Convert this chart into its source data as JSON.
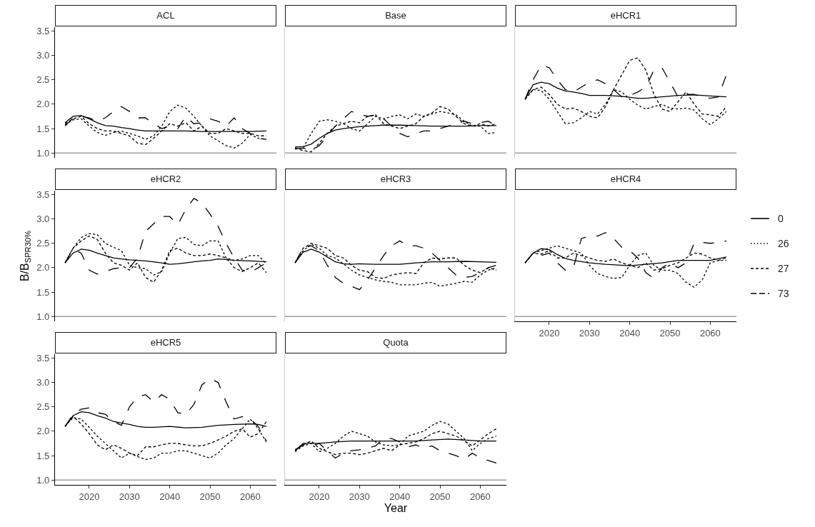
{
  "chart_data": [
    {
      "type": "line",
      "title": "ACL",
      "xlim": [
        2011.5,
        2066.5
      ],
      "xticks": [
        2020,
        2030,
        2040,
        2050,
        2060
      ],
      "ylim": [
        0.9,
        3.58
      ],
      "yticks": [
        {
          "value": 1,
          "label": "1.0"
        },
        {
          "value": 1.5,
          "label": "1.5"
        },
        {
          "value": 2,
          "label": "2.0"
        },
        {
          "value": 2.5,
          "label": "2.5"
        },
        {
          "value": 3,
          "label": "3.0"
        },
        {
          "value": 3.5,
          "label": "3.5"
        }
      ],
      "tick_labels": "y",
      "ref_lines": [
        {
          "axis": "y",
          "value": 1,
          "color": "#a0a0a0"
        }
      ],
      "series": [
        {
          "color": "#000000",
          "line_style": "solid",
          "x": [
            2014,
            2016,
            2018,
            2020,
            2022,
            2024,
            2026,
            2028,
            2030,
            2032,
            2034,
            2036,
            2040,
            2044,
            2048,
            2052,
            2056,
            2060,
            2064
          ],
          "values": [
            1.62,
            1.75,
            1.77,
            1.7,
            1.62,
            1.56,
            1.55,
            1.52,
            1.5,
            1.47,
            1.45,
            1.45,
            1.45,
            1.45,
            1.44,
            1.44,
            1.44,
            1.44,
            1.45
          ]
        },
        {
          "color": "#000000",
          "line_style": "dotted",
          "x": [
            2014,
            2016,
            2018,
            2020,
            2022,
            2024,
            2026,
            2028,
            2030,
            2032,
            2034,
            2036,
            2038,
            2040,
            2042,
            2044,
            2046,
            2048,
            2050,
            2052,
            2054,
            2056,
            2058,
            2060,
            2062,
            2064
          ],
          "values": [
            1.58,
            1.68,
            1.7,
            1.55,
            1.42,
            1.36,
            1.42,
            1.45,
            1.4,
            1.35,
            1.28,
            1.35,
            1.55,
            1.85,
            1.98,
            1.92,
            1.75,
            1.55,
            1.35,
            1.25,
            1.15,
            1.1,
            1.2,
            1.38,
            1.3,
            1.28
          ]
        },
        {
          "color": "#000000",
          "line_style": "dashed",
          "x": [
            2014,
            2016,
            2018,
            2020,
            2022,
            2024,
            2026,
            2028,
            2030,
            2032,
            2034,
            2036,
            2038,
            2040,
            2042,
            2044,
            2046,
            2048,
            2050,
            2052,
            2054,
            2056,
            2058,
            2060,
            2062,
            2064
          ],
          "values": [
            1.6,
            1.7,
            1.75,
            1.6,
            1.5,
            1.45,
            1.45,
            1.4,
            1.35,
            1.2,
            1.17,
            1.3,
            1.45,
            1.6,
            1.55,
            1.62,
            1.45,
            1.55,
            1.4,
            1.4,
            1.5,
            1.45,
            1.4,
            1.4,
            1.35,
            1.35
          ]
        },
        {
          "color": "#000000",
          "line_style": "longdash",
          "x": [
            2014,
            2016,
            2018,
            2020,
            2022,
            2024,
            2026,
            2028,
            2030,
            2032,
            2034,
            2036,
            2038,
            2040,
            2042,
            2044,
            2046,
            2048,
            2050,
            2052,
            2054,
            2056,
            2058,
            2060,
            2062,
            2064
          ],
          "values": [
            1.55,
            1.72,
            1.75,
            1.72,
            1.65,
            1.72,
            1.85,
            1.95,
            1.85,
            1.72,
            1.72,
            1.6,
            1.5,
            1.55,
            1.5,
            1.75,
            1.6,
            1.62,
            1.7,
            1.65,
            1.55,
            1.72,
            1.5,
            1.4,
            1.3,
            1.28
          ]
        }
      ]
    },
    {
      "type": "line",
      "title": "Base",
      "xlim": [
        2011.5,
        2066.5
      ],
      "xticks": [
        2020,
        2030,
        2040,
        2050,
        2060
      ],
      "ylim": [
        0.9,
        3.58
      ],
      "tick_labels": false,
      "ref_lines": [
        {
          "axis": "y",
          "value": 1,
          "color": "#a0a0a0"
        }
      ],
      "series": [
        {
          "color": "#000000",
          "line_style": "solid",
          "x": [
            2014,
            2016,
            2018,
            2020,
            2022,
            2024,
            2026,
            2028,
            2030,
            2032,
            2034,
            2036,
            2040,
            2044,
            2048,
            2052,
            2056,
            2060,
            2064
          ],
          "values": [
            1.12,
            1.13,
            1.18,
            1.3,
            1.4,
            1.47,
            1.5,
            1.52,
            1.54,
            1.55,
            1.56,
            1.57,
            1.57,
            1.56,
            1.55,
            1.55,
            1.55,
            1.56,
            1.56
          ]
        },
        {
          "color": "#000000",
          "line_style": "dotted",
          "x": [
            2014,
            2016,
            2018,
            2020,
            2022,
            2024,
            2026,
            2028,
            2030,
            2032,
            2034,
            2036,
            2038,
            2040,
            2042,
            2044,
            2046,
            2048,
            2050,
            2052,
            2054,
            2056,
            2058,
            2060,
            2062,
            2064
          ],
          "values": [
            1.08,
            1.1,
            1.4,
            1.65,
            1.68,
            1.65,
            1.6,
            1.5,
            1.45,
            1.6,
            1.75,
            1.7,
            1.75,
            1.78,
            1.7,
            1.8,
            1.75,
            1.8,
            1.85,
            1.82,
            1.78,
            1.65,
            1.55,
            1.55,
            1.4,
            1.42
          ]
        },
        {
          "color": "#000000",
          "line_style": "dashed",
          "x": [
            2014,
            2016,
            2018,
            2020,
            2022,
            2024,
            2026,
            2028,
            2030,
            2032,
            2034,
            2036,
            2038,
            2040,
            2042,
            2044,
            2046,
            2048,
            2050,
            2052,
            2054,
            2056,
            2058,
            2060,
            2062,
            2064
          ],
          "values": [
            1.1,
            1.05,
            1.02,
            1.2,
            1.4,
            1.55,
            1.6,
            1.65,
            1.62,
            1.75,
            1.78,
            1.6,
            1.55,
            1.5,
            1.55,
            1.6,
            1.75,
            1.82,
            1.95,
            1.9,
            1.75,
            1.6,
            1.55,
            1.6,
            1.55,
            1.6
          ]
        },
        {
          "color": "#000000",
          "line_style": "longdash",
          "x": [
            2014,
            2016,
            2018,
            2020,
            2022,
            2024,
            2026,
            2028,
            2030,
            2032,
            2034,
            2036,
            2038,
            2040,
            2042,
            2044,
            2046,
            2048,
            2050,
            2052,
            2054,
            2056,
            2058,
            2060,
            2062,
            2064
          ],
          "values": [
            1.08,
            1.1,
            1.05,
            1.15,
            1.35,
            1.55,
            1.7,
            1.85,
            1.8,
            1.75,
            1.78,
            1.7,
            1.55,
            1.4,
            1.33,
            1.4,
            1.45,
            1.45,
            1.5,
            1.55,
            1.6,
            1.65,
            1.6,
            1.62,
            1.65,
            1.55
          ]
        }
      ]
    },
    {
      "type": "line",
      "title": "eHCR1",
      "xlim": [
        2011.5,
        2066.5
      ],
      "xticks": [
        2020,
        2030,
        2040,
        2050,
        2060
      ],
      "ylim": [
        0.9,
        3.58
      ],
      "tick_labels": false,
      "ref_lines": [
        {
          "axis": "y",
          "value": 1,
          "color": "#a0a0a0"
        }
      ],
      "series": [
        {
          "color": "#000000",
          "line_style": "solid",
          "x": [
            2014,
            2016,
            2018,
            2020,
            2022,
            2024,
            2026,
            2028,
            2030,
            2034,
            2038,
            2042,
            2044,
            2048,
            2052,
            2056,
            2060,
            2064
          ],
          "values": [
            2.1,
            2.4,
            2.45,
            2.42,
            2.33,
            2.27,
            2.25,
            2.22,
            2.18,
            2.18,
            2.16,
            2.12,
            2.12,
            2.15,
            2.18,
            2.19,
            2.17,
            2.15
          ]
        },
        {
          "color": "#000000",
          "line_style": "dotted",
          "x": [
            2014,
            2016,
            2018,
            2020,
            2022,
            2024,
            2026,
            2028,
            2030,
            2032,
            2034,
            2036,
            2038,
            2040,
            2042,
            2044,
            2046,
            2048,
            2050,
            2052,
            2054,
            2056,
            2058,
            2060,
            2062,
            2064
          ],
          "values": [
            2.1,
            2.3,
            2.28,
            2.1,
            1.85,
            1.6,
            1.62,
            1.72,
            1.85,
            1.8,
            2.0,
            2.3,
            2.25,
            2.1,
            1.98,
            1.9,
            1.95,
            2.0,
            1.92,
            1.9,
            1.92,
            1.88,
            1.7,
            1.58,
            1.7,
            1.85
          ]
        },
        {
          "color": "#000000",
          "line_style": "dashed",
          "x": [
            2014,
            2016,
            2018,
            2020,
            2022,
            2024,
            2026,
            2028,
            2030,
            2032,
            2034,
            2036,
            2038,
            2040,
            2042,
            2044,
            2046,
            2048,
            2050,
            2052,
            2054,
            2056,
            2058,
            2060,
            2062,
            2064
          ],
          "values": [
            2.1,
            2.3,
            2.35,
            2.2,
            2.0,
            1.9,
            1.92,
            1.85,
            1.75,
            1.72,
            1.95,
            2.3,
            2.6,
            2.9,
            2.95,
            2.7,
            2.2,
            1.9,
            1.85,
            2.05,
            2.25,
            2.0,
            1.8,
            1.78,
            1.75,
            1.95
          ]
        },
        {
          "color": "#000000",
          "line_style": "longdash",
          "x": [
            2014,
            2016,
            2018,
            2020,
            2022,
            2024,
            2026,
            2028,
            2030,
            2032,
            2034,
            2036,
            2038,
            2040,
            2042,
            2044,
            2046,
            2048,
            2050,
            2052,
            2054,
            2056,
            2058,
            2060,
            2062,
            2064
          ],
          "values": [
            2.1,
            2.5,
            2.8,
            2.75,
            2.5,
            2.3,
            2.25,
            2.35,
            2.45,
            2.5,
            2.42,
            2.3,
            2.15,
            2.18,
            2.25,
            2.35,
            2.7,
            2.75,
            2.45,
            2.15,
            2.2,
            2.2,
            2.15,
            2.12,
            2.15,
            2.6
          ]
        }
      ]
    },
    {
      "type": "line",
      "title": "eHCR2",
      "ylabel": "B/B$_{SPR30%}$",
      "xlim": [
        2011.5,
        2066.5
      ],
      "xticks": [
        2020,
        2030,
        2040,
        2050,
        2060
      ],
      "ylim": [
        0.9,
        3.58
      ],
      "yticks": [
        {
          "value": 1,
          "label": "1.0"
        },
        {
          "value": 1.5,
          "label": "1.5"
        },
        {
          "value": 2,
          "label": "2.0"
        },
        {
          "value": 2.5,
          "label": "2.5"
        },
        {
          "value": 3,
          "label": "3.0"
        },
        {
          "value": 3.5,
          "label": "3.5"
        }
      ],
      "tick_labels": "y",
      "ref_lines": [
        {
          "axis": "y",
          "value": 1,
          "color": "#a0a0a0"
        }
      ],
      "series": [
        {
          "color": "#000000",
          "line_style": "solid",
          "x": [
            2014,
            2016,
            2018,
            2020,
            2022,
            2024,
            2026,
            2028,
            2030,
            2034,
            2038,
            2040,
            2042,
            2044,
            2046,
            2048,
            2050,
            2052,
            2054,
            2056,
            2060,
            2064
          ],
          "values": [
            2.1,
            2.3,
            2.38,
            2.36,
            2.3,
            2.25,
            2.2,
            2.18,
            2.16,
            2.14,
            2.1,
            2.07,
            2.08,
            2.1,
            2.12,
            2.14,
            2.15,
            2.18,
            2.17,
            2.15,
            2.14,
            2.12
          ]
        },
        {
          "color": "#000000",
          "line_style": "dotted",
          "x": [
            2014,
            2016,
            2018,
            2020,
            2022,
            2024,
            2026,
            2028,
            2030,
            2032,
            2034,
            2036,
            2038,
            2040,
            2042,
            2044,
            2046,
            2048,
            2050,
            2052,
            2054,
            2056,
            2058,
            2060,
            2062,
            2064
          ],
          "values": [
            2.1,
            2.4,
            2.62,
            2.7,
            2.68,
            2.5,
            2.42,
            2.35,
            2.05,
            2.0,
            1.98,
            1.85,
            1.92,
            2.3,
            2.6,
            2.62,
            2.48,
            2.45,
            2.55,
            2.55,
            2.2,
            2.15,
            2.18,
            2.25,
            2.25,
            2.08
          ]
        },
        {
          "color": "#000000",
          "line_style": "dashed",
          "x": [
            2014,
            2016,
            2018,
            2020,
            2022,
            2024,
            2026,
            2028,
            2030,
            2032,
            2034,
            2036,
            2038,
            2040,
            2042,
            2044,
            2046,
            2048,
            2050,
            2052,
            2054,
            2056,
            2058,
            2060,
            2062,
            2064
          ],
          "values": [
            2.1,
            2.4,
            2.55,
            2.65,
            2.58,
            2.3,
            2.1,
            2.05,
            1.95,
            2.1,
            1.8,
            1.7,
            1.95,
            2.35,
            2.4,
            2.3,
            2.25,
            2.25,
            2.28,
            2.25,
            2.2,
            2.0,
            1.92,
            2.0,
            2.1,
            1.9
          ]
        },
        {
          "color": "#000000",
          "line_style": "longdash",
          "x": [
            2014,
            2016,
            2018,
            2020,
            2022,
            2024,
            2026,
            2028,
            2030,
            2032,
            2034,
            2036,
            2038,
            2040,
            2042,
            2044,
            2046,
            2048,
            2050,
            2052,
            2054,
            2056,
            2058,
            2060,
            2062,
            2064
          ],
          "values": [
            2.1,
            2.38,
            2.3,
            1.95,
            1.87,
            1.92,
            1.98,
            2.0,
            2.0,
            2.2,
            2.75,
            2.9,
            3.05,
            3.05,
            2.88,
            3.2,
            3.42,
            3.33,
            3.1,
            2.85,
            2.5,
            2.2,
            1.95,
            1.9,
            2.0,
            2.1
          ]
        }
      ]
    },
    {
      "type": "line",
      "title": "eHCR3",
      "xlim": [
        2011.5,
        2066.5
      ],
      "xticks": [
        2020,
        2030,
        2040,
        2050,
        2060
      ],
      "ylim": [
        0.9,
        3.58
      ],
      "tick_labels": false,
      "ref_lines": [
        {
          "axis": "y",
          "value": 1,
          "color": "#a0a0a0"
        }
      ],
      "series": [
        {
          "color": "#000000",
          "line_style": "solid",
          "x": [
            2014,
            2016,
            2018,
            2020,
            2022,
            2024,
            2026,
            2028,
            2030,
            2034,
            2040,
            2044,
            2048,
            2052,
            2056,
            2060,
            2064
          ],
          "values": [
            2.1,
            2.32,
            2.38,
            2.32,
            2.22,
            2.12,
            2.08,
            2.07,
            2.08,
            2.07,
            2.07,
            2.1,
            2.12,
            2.12,
            2.13,
            2.12,
            2.11
          ]
        },
        {
          "color": "#000000",
          "line_style": "dotted",
          "x": [
            2014,
            2016,
            2018,
            2020,
            2022,
            2024,
            2026,
            2028,
            2030,
            2032,
            2034,
            2036,
            2038,
            2040,
            2042,
            2044,
            2046,
            2048,
            2050,
            2052,
            2054,
            2056,
            2058,
            2060,
            2062,
            2064
          ],
          "values": [
            2.1,
            2.35,
            2.48,
            2.4,
            2.25,
            2.2,
            2.08,
            1.95,
            1.85,
            1.8,
            1.75,
            1.72,
            1.7,
            1.65,
            1.65,
            1.65,
            1.68,
            1.7,
            1.62,
            1.65,
            1.68,
            1.72,
            1.7,
            1.85,
            1.95,
            2.0
          ]
        },
        {
          "color": "#000000",
          "line_style": "dashed",
          "x": [
            2014,
            2016,
            2018,
            2020,
            2022,
            2024,
            2026,
            2028,
            2030,
            2032,
            2034,
            2036,
            2038,
            2040,
            2042,
            2044,
            2046,
            2048,
            2050,
            2052,
            2054,
            2056,
            2058,
            2060,
            2062,
            2064
          ],
          "values": [
            2.1,
            2.4,
            2.5,
            2.45,
            2.4,
            2.25,
            2.2,
            2.05,
            1.95,
            1.92,
            1.8,
            1.78,
            1.85,
            1.88,
            1.9,
            1.88,
            2.1,
            2.2,
            2.18,
            2.2,
            2.2,
            2.05,
            1.95,
            1.9,
            2.0,
            1.95
          ]
        },
        {
          "color": "#000000",
          "line_style": "longdash",
          "x": [
            2014,
            2016,
            2018,
            2020,
            2022,
            2024,
            2026,
            2028,
            2030,
            2032,
            2034,
            2036,
            2038,
            2040,
            2042,
            2044,
            2046,
            2048,
            2050,
            2052,
            2054,
            2056,
            2058,
            2060,
            2062,
            2064
          ],
          "values": [
            2.1,
            2.4,
            2.45,
            2.35,
            2.05,
            1.8,
            1.68,
            1.62,
            1.55,
            1.75,
            2.0,
            2.25,
            2.45,
            2.55,
            2.45,
            2.45,
            2.4,
            2.3,
            2.15,
            2.0,
            1.85,
            1.8,
            1.82,
            1.9,
            2.0,
            2.05
          ]
        }
      ]
    },
    {
      "type": "line",
      "title": "eHCR4",
      "legend": "right",
      "xlim": [
        2011.5,
        2066.5
      ],
      "xticks": [
        2020,
        2030,
        2040,
        2050,
        2060
      ],
      "ylim": [
        0.9,
        3.58
      ],
      "tick_labels": "x",
      "ref_lines": [
        {
          "axis": "y",
          "value": 1,
          "color": "#a0a0a0"
        }
      ],
      "series": [
        {
          "name": "0",
          "color": "#000000",
          "line_style": "solid",
          "x": [
            2014,
            2016,
            2018,
            2020,
            2022,
            2024,
            2026,
            2030,
            2034,
            2040,
            2044,
            2048,
            2052,
            2056,
            2060,
            2064
          ],
          "values": [
            2.1,
            2.3,
            2.39,
            2.37,
            2.27,
            2.19,
            2.15,
            2.1,
            2.07,
            2.04,
            2.07,
            2.1,
            2.15,
            2.15,
            2.15,
            2.22
          ]
        },
        {
          "name": "26",
          "color": "#000000",
          "line_style": "dotted",
          "x": [
            2014,
            2016,
            2018,
            2020,
            2022,
            2024,
            2026,
            2028,
            2030,
            2032,
            2034,
            2036,
            2038,
            2040,
            2042,
            2044,
            2046,
            2048,
            2050,
            2052,
            2054,
            2056,
            2058,
            2060,
            2062,
            2064
          ],
          "values": [
            2.1,
            2.3,
            2.35,
            2.4,
            2.45,
            2.4,
            2.35,
            2.3,
            2.05,
            1.88,
            1.82,
            1.78,
            1.8,
            2.05,
            2.25,
            2.3,
            2.05,
            1.95,
            1.95,
            1.88,
            1.7,
            1.6,
            1.75,
            2.1,
            2.15,
            2.15
          ]
        },
        {
          "name": "27",
          "color": "#000000",
          "line_style": "dashed",
          "x": [
            2014,
            2016,
            2018,
            2020,
            2022,
            2024,
            2026,
            2028,
            2030,
            2032,
            2034,
            2036,
            2038,
            2040,
            2042,
            2044,
            2046,
            2048,
            2050,
            2052,
            2054,
            2056,
            2058,
            2060,
            2062,
            2064
          ],
          "values": [
            2.1,
            2.3,
            2.28,
            2.35,
            2.2,
            2.2,
            2.3,
            2.25,
            2.2,
            2.15,
            2.13,
            2.18,
            2.1,
            2.05,
            2.0,
            2.1,
            1.95,
            1.98,
            2.05,
            2.1,
            2.2,
            2.3,
            2.28,
            2.2,
            2.15,
            2.2
          ]
        },
        {
          "name": "73",
          "color": "#000000",
          "line_style": "longdash",
          "x": [
            2014,
            2016,
            2018,
            2020,
            2022,
            2024,
            2026,
            2028,
            2030,
            2032,
            2034,
            2036,
            2038,
            2040,
            2042,
            2044,
            2046,
            2048,
            2050,
            2052,
            2054,
            2056,
            2058,
            2060,
            2062,
            2064
          ],
          "values": [
            2.1,
            2.3,
            2.25,
            2.3,
            2.1,
            1.95,
            2.0,
            2.6,
            2.65,
            2.65,
            2.72,
            2.6,
            2.42,
            2.35,
            2.2,
            1.9,
            1.78,
            2.0,
            2.1,
            2.0,
            2.1,
            2.5,
            2.52,
            2.5,
            2.52,
            2.55
          ]
        }
      ]
    },
    {
      "type": "line",
      "title": "eHCR5",
      "xlim": [
        2011.5,
        2066.5
      ],
      "xticks": [
        2020,
        2030,
        2040,
        2050,
        2060
      ],
      "ylim": [
        0.9,
        3.58
      ],
      "yticks": [
        {
          "value": 1,
          "label": "1.0"
        },
        {
          "value": 1.5,
          "label": "1.5"
        },
        {
          "value": 2,
          "label": "2.0"
        },
        {
          "value": 2.5,
          "label": "2.5"
        },
        {
          "value": 3,
          "label": "3.0"
        },
        {
          "value": 3.5,
          "label": "3.5"
        }
      ],
      "ref_lines": [
        {
          "axis": "y",
          "value": 1,
          "color": "#a0a0a0"
        }
      ],
      "series": [
        {
          "color": "#000000",
          "line_style": "solid",
          "x": [
            2014,
            2016,
            2018,
            2020,
            2022,
            2024,
            2026,
            2028,
            2030,
            2032,
            2034,
            2036,
            2040,
            2044,
            2048,
            2052,
            2056,
            2060,
            2062,
            2064
          ],
          "values": [
            2.1,
            2.32,
            2.4,
            2.38,
            2.32,
            2.27,
            2.2,
            2.17,
            2.14,
            2.1,
            2.08,
            2.08,
            2.1,
            2.07,
            2.08,
            2.12,
            2.14,
            2.15,
            2.14,
            2.1
          ]
        },
        {
          "color": "#000000",
          "line_style": "dotted",
          "x": [
            2014,
            2016,
            2018,
            2020,
            2022,
            2024,
            2026,
            2028,
            2030,
            2032,
            2034,
            2036,
            2038,
            2040,
            2042,
            2044,
            2046,
            2048,
            2050,
            2052,
            2054,
            2056,
            2058,
            2060,
            2062,
            2064
          ],
          "values": [
            2.1,
            2.28,
            2.25,
            2.08,
            1.9,
            1.75,
            1.6,
            1.45,
            1.55,
            1.48,
            1.42,
            1.45,
            1.55,
            1.55,
            1.6,
            1.6,
            1.55,
            1.5,
            1.45,
            1.55,
            1.72,
            1.85,
            2.05,
            2.25,
            2.05,
            1.78
          ]
        },
        {
          "color": "#000000",
          "line_style": "dashed",
          "x": [
            2014,
            2016,
            2018,
            2020,
            2022,
            2024,
            2026,
            2028,
            2030,
            2032,
            2034,
            2036,
            2038,
            2040,
            2042,
            2044,
            2046,
            2048,
            2050,
            2052,
            2054,
            2056,
            2058,
            2060,
            2062,
            2064
          ],
          "values": [
            2.1,
            2.3,
            2.15,
            1.95,
            1.72,
            1.62,
            1.72,
            1.65,
            1.55,
            1.5,
            1.68,
            1.68,
            1.72,
            1.75,
            1.75,
            1.72,
            1.7,
            1.7,
            1.75,
            1.82,
            1.9,
            2.0,
            2.05,
            1.88,
            1.95,
            2.2
          ]
        },
        {
          "color": "#000000",
          "line_style": "longdash",
          "x": [
            2014,
            2016,
            2018,
            2020,
            2022,
            2024,
            2026,
            2028,
            2030,
            2032,
            2034,
            2036,
            2038,
            2040,
            2042,
            2044,
            2046,
            2048,
            2050,
            2052,
            2054,
            2056,
            2058,
            2060,
            2062,
            2064
          ],
          "values": [
            2.1,
            2.35,
            2.45,
            2.48,
            2.38,
            2.35,
            2.2,
            2.12,
            2.5,
            2.7,
            2.75,
            2.6,
            2.75,
            2.65,
            2.38,
            2.35,
            2.55,
            2.95,
            3.08,
            3.0,
            2.6,
            2.25,
            2.3,
            2.25,
            2.1,
            1.8
          ]
        }
      ]
    },
    {
      "type": "line",
      "title": "Quota",
      "xlabel": "Year",
      "xlim": [
        2011.5,
        2066.5
      ],
      "xticks": [
        2020,
        2030,
        2040,
        2050,
        2060
      ],
      "ylim": [
        0.9,
        3.58
      ],
      "tick_labels": "x",
      "ref_lines": [
        {
          "axis": "y",
          "value": 1,
          "color": "#a0a0a0"
        }
      ],
      "series": [
        {
          "color": "#000000",
          "line_style": "solid",
          "x": [
            2014,
            2016,
            2018,
            2020,
            2024,
            2028,
            2032,
            2036,
            2040,
            2044,
            2048,
            2052,
            2056,
            2060,
            2064
          ],
          "values": [
            1.6,
            1.75,
            1.75,
            1.75,
            1.78,
            1.8,
            1.8,
            1.8,
            1.8,
            1.8,
            1.82,
            1.84,
            1.82,
            1.8,
            1.8
          ]
        },
        {
          "color": "#000000",
          "line_style": "dotted",
          "x": [
            2014,
            2016,
            2018,
            2020,
            2022,
            2024,
            2026,
            2028,
            2030,
            2032,
            2034,
            2036,
            2038,
            2040,
            2042,
            2044,
            2046,
            2048,
            2050,
            2052,
            2054,
            2056,
            2058,
            2060,
            2062,
            2064
          ],
          "values": [
            1.58,
            1.7,
            1.75,
            1.58,
            1.65,
            1.75,
            1.9,
            2.0,
            1.95,
            1.9,
            1.78,
            1.72,
            1.7,
            1.72,
            1.9,
            1.95,
            2.0,
            2.12,
            2.2,
            2.15,
            2.0,
            1.85,
            1.6,
            1.75,
            1.85,
            1.9
          ]
        },
        {
          "color": "#000000",
          "line_style": "dashed",
          "x": [
            2014,
            2016,
            2018,
            2020,
            2022,
            2024,
            2026,
            2028,
            2030,
            2032,
            2034,
            2036,
            2038,
            2040,
            2042,
            2044,
            2046,
            2048,
            2050,
            2052,
            2054,
            2056,
            2058,
            2060,
            2062,
            2064
          ],
          "values": [
            1.6,
            1.72,
            1.8,
            1.65,
            1.58,
            1.52,
            1.55,
            1.55,
            1.52,
            1.55,
            1.6,
            1.65,
            1.6,
            1.72,
            1.75,
            1.78,
            1.85,
            1.95,
            2.0,
            1.95,
            1.9,
            1.8,
            1.7,
            1.82,
            1.95,
            2.05
          ]
        },
        {
          "color": "#000000",
          "line_style": "longdash",
          "x": [
            2014,
            2016,
            2018,
            2020,
            2022,
            2024,
            2026,
            2028,
            2030,
            2032,
            2034,
            2036,
            2038,
            2040,
            2042,
            2044,
            2046,
            2048,
            2050,
            2052,
            2054,
            2056,
            2058,
            2060,
            2062,
            2064
          ],
          "values": [
            1.62,
            1.72,
            1.7,
            1.75,
            1.6,
            1.45,
            1.55,
            1.6,
            1.62,
            1.65,
            1.7,
            1.85,
            1.85,
            1.78,
            1.68,
            1.72,
            1.65,
            1.7,
            1.6,
            1.55,
            1.5,
            1.42,
            1.55,
            1.45,
            1.4,
            1.35
          ]
        }
      ]
    }
  ]
}
